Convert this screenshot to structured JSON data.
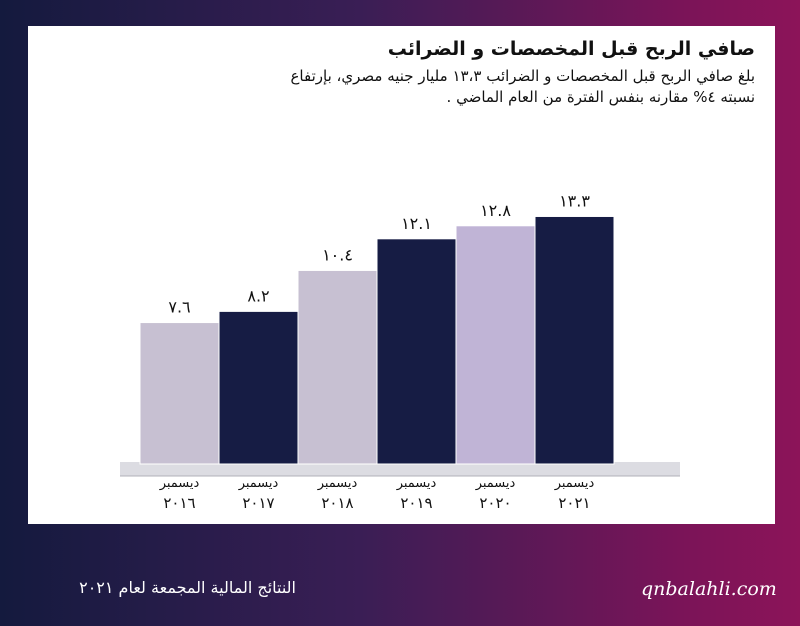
{
  "header": {
    "title": "صافي الربح قبل المخصصات و الضرائب",
    "subtitle_line1": "بلغ صافي الربح قبل المخصصات و الضرائب ١٣،٣ مليار جنيه مصري، بإرتفاع",
    "subtitle_line2": "نسبته ٤% مقارنه بنفس الفترة من العام الماضي ."
  },
  "footer": {
    "website": "qnbalahli.com",
    "report_name": "النتائج المالية المجمعة لعام ٢٠٢١"
  },
  "chart_data": {
    "type": "bar",
    "categories": [
      {
        "month": "ديسمبر",
        "year": "٢٠١٦"
      },
      {
        "month": "ديسمبر",
        "year": "٢٠١٧"
      },
      {
        "month": "ديسمبر",
        "year": "٢٠١٨"
      },
      {
        "month": "ديسمبر",
        "year": "٢٠١٩"
      },
      {
        "month": "ديسمبر",
        "year": "٢٠٢٠"
      },
      {
        "month": "ديسمبر",
        "year": "٢٠٢١"
      }
    ],
    "values": [
      7.6,
      8.2,
      10.4,
      12.1,
      12.8,
      13.3
    ],
    "value_labels": [
      "٧.٦",
      "٨.٢",
      "١٠.٤",
      "١٢.١",
      "١٢.٨",
      "١٣.٣"
    ],
    "colors": [
      "#c7c0d2",
      "#161c44",
      "#c7c0d2",
      "#161c44",
      "#c0b4d6",
      "#161c44"
    ],
    "ylim": [
      0,
      14.4
    ]
  }
}
